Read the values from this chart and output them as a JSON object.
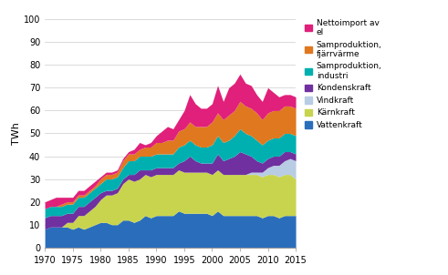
{
  "years": [
    1970,
    1971,
    1972,
    1973,
    1974,
    1975,
    1976,
    1977,
    1978,
    1979,
    1980,
    1981,
    1982,
    1983,
    1984,
    1985,
    1986,
    1987,
    1988,
    1989,
    1990,
    1991,
    1992,
    1993,
    1994,
    1995,
    1996,
    1997,
    1998,
    1999,
    2000,
    2001,
    2002,
    2003,
    2004,
    2005,
    2006,
    2007,
    2008,
    2009,
    2010,
    2011,
    2012,
    2013,
    2014,
    2015
  ],
  "vattenkraft": [
    8,
    9,
    9,
    9,
    9,
    8,
    9,
    8,
    9,
    10,
    11,
    11,
    10,
    10,
    12,
    12,
    11,
    12,
    14,
    13,
    14,
    14,
    14,
    14,
    16,
    15,
    15,
    15,
    15,
    15,
    14,
    16,
    14,
    14,
    14,
    14,
    14,
    14,
    14,
    13,
    14,
    14,
    13,
    14,
    14,
    14
  ],
  "karnkraft": [
    0,
    0,
    0,
    0,
    2,
    3,
    5,
    6,
    7,
    8,
    10,
    12,
    13,
    14,
    16,
    18,
    18,
    18,
    18,
    18,
    18,
    18,
    18,
    18,
    18,
    18,
    18,
    18,
    18,
    18,
    18,
    18,
    18,
    18,
    18,
    18,
    18,
    18,
    18,
    18,
    18,
    18,
    18,
    18,
    18,
    16
  ],
  "vindkraft": [
    0,
    0,
    0,
    0,
    0,
    0,
    0,
    0,
    0,
    0,
    0,
    0,
    0,
    0,
    0,
    0,
    0,
    0,
    0,
    0,
    0,
    0,
    0,
    0,
    0,
    0,
    0,
    0,
    0,
    0,
    0,
    0,
    0,
    0,
    0,
    0,
    0,
    1,
    1,
    2,
    3,
    4,
    5,
    6,
    7,
    8
  ],
  "kondenskraft": [
    5,
    5,
    5,
    5,
    4,
    4,
    4,
    4,
    4,
    4,
    3,
    2,
    2,
    2,
    2,
    2,
    3,
    4,
    2,
    3,
    3,
    3,
    3,
    3,
    3,
    5,
    7,
    5,
    4,
    4,
    5,
    7,
    6,
    7,
    8,
    10,
    9,
    7,
    5,
    4,
    4,
    4,
    4,
    4,
    3,
    3
  ],
  "samp_industri": [
    4,
    4,
    4,
    4,
    4,
    4,
    4,
    4,
    4,
    4,
    4,
    5,
    5,
    5,
    5,
    6,
    6,
    6,
    6,
    6,
    6,
    6,
    6,
    6,
    7,
    7,
    7,
    7,
    7,
    7,
    8,
    8,
    8,
    8,
    9,
    10,
    9,
    9,
    9,
    8,
    8,
    8,
    8,
    8,
    8,
    8
  ],
  "samp_fjarvarm": [
    0,
    0,
    0,
    1,
    1,
    1,
    1,
    1,
    1,
    1,
    2,
    2,
    2,
    2,
    3,
    3,
    3,
    3,
    4,
    4,
    5,
    5,
    6,
    6,
    7,
    7,
    8,
    8,
    9,
    9,
    10,
    10,
    10,
    11,
    11,
    12,
    12,
    12,
    12,
    11,
    12,
    12,
    12,
    12,
    12,
    12
  ],
  "nettoimport": [
    3,
    3,
    4,
    3,
    2,
    2,
    2,
    2,
    2,
    2,
    1,
    1,
    1,
    1,
    1,
    1,
    2,
    3,
    1,
    2,
    3,
    5,
    6,
    5,
    5,
    8,
    12,
    10,
    8,
    8,
    8,
    12,
    8,
    12,
    12,
    12,
    10,
    10,
    8,
    8,
    11,
    8,
    6,
    5,
    5,
    5
  ],
  "colors": {
    "vattenkraft": "#2a6ebb",
    "karnkraft": "#c8d44e",
    "vindkraft": "#b8cce4",
    "kondenskraft": "#7030a0",
    "samp_industri": "#00b0b0",
    "samp_fjarvarm": "#e07820",
    "nettoimport": "#e0207a"
  },
  "ylabel": "TWh",
  "ylim": [
    0,
    100
  ],
  "xlim": [
    1970,
    2015
  ],
  "yticks": [
    0,
    10,
    20,
    30,
    40,
    50,
    60,
    70,
    80,
    90,
    100
  ],
  "xticks": [
    1970,
    1975,
    1980,
    1985,
    1990,
    1995,
    2000,
    2005,
    2010,
    2015
  ]
}
